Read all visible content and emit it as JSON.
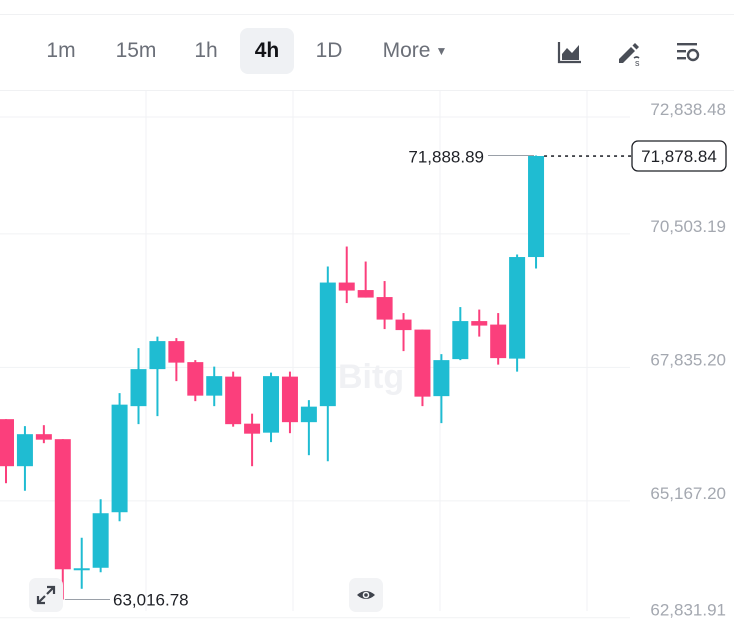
{
  "toolbar": {
    "timeframes": [
      {
        "label": "1m",
        "active": false
      },
      {
        "label": "15m",
        "active": false
      },
      {
        "label": "1h",
        "active": false
      },
      {
        "label": "4h",
        "active": true
      },
      {
        "label": "1D",
        "active": false
      }
    ],
    "more_label": "More",
    "tools": [
      "chart-type-icon",
      "drawing-tools-icon",
      "indicator-settings-icon"
    ]
  },
  "colors": {
    "up": "#1fbcd2",
    "down": "#fb3f7c",
    "grid": "#f1f2f4",
    "axis_text": "#a4a8b0"
  },
  "watermark": "Bitg",
  "chart_data": {
    "type": "candlestick",
    "y_ticks": [
      72838.48,
      70503.19,
      67835.2,
      65167.2,
      62831.91
    ],
    "y_tick_labels": [
      "72,838.48",
      "70,503.19",
      "67,835.20",
      "65,167.20",
      "62,831.91"
    ],
    "high_label": "71,888.89",
    "low_label": "63,016.78",
    "last_price_label": "71,878.84",
    "last_price": 71878.84,
    "candles": [
      {
        "o": 66620,
        "h": 66620,
        "l": 65340,
        "c": 65680
      },
      {
        "o": 65680,
        "h": 66480,
        "l": 65190,
        "c": 66320
      },
      {
        "o": 66320,
        "h": 66500,
        "l": 66140,
        "c": 66210
      },
      {
        "o": 66220,
        "h": 66220,
        "l": 63016.78,
        "c": 63620
      },
      {
        "o": 63620,
        "h": 64250,
        "l": 63230,
        "c": 63640
      },
      {
        "o": 63650,
        "h": 65020,
        "l": 63560,
        "c": 64740
      },
      {
        "o": 64760,
        "h": 67140,
        "l": 64580,
        "c": 66910
      },
      {
        "o": 66880,
        "h": 68040,
        "l": 66520,
        "c": 67620
      },
      {
        "o": 67620,
        "h": 68270,
        "l": 66680,
        "c": 68180
      },
      {
        "o": 68180,
        "h": 68240,
        "l": 67380,
        "c": 67750
      },
      {
        "o": 67760,
        "h": 67800,
        "l": 66980,
        "c": 67090
      },
      {
        "o": 67090,
        "h": 67670,
        "l": 66880,
        "c": 67480
      },
      {
        "o": 67470,
        "h": 67570,
        "l": 66470,
        "c": 66520
      },
      {
        "o": 66530,
        "h": 66730,
        "l": 65680,
        "c": 66330
      },
      {
        "o": 66350,
        "h": 67550,
        "l": 66160,
        "c": 67480
      },
      {
        "o": 67470,
        "h": 67570,
        "l": 66340,
        "c": 66560
      },
      {
        "o": 66560,
        "h": 67000,
        "l": 65900,
        "c": 66870
      },
      {
        "o": 66880,
        "h": 69670,
        "l": 65780,
        "c": 69350
      },
      {
        "o": 69350,
        "h": 70070,
        "l": 68940,
        "c": 69190
      },
      {
        "o": 69200,
        "h": 69770,
        "l": 69050,
        "c": 69050
      },
      {
        "o": 69060,
        "h": 69380,
        "l": 68420,
        "c": 68610
      },
      {
        "o": 68610,
        "h": 68740,
        "l": 67980,
        "c": 68400
      },
      {
        "o": 68410,
        "h": 68410,
        "l": 66880,
        "c": 67070
      },
      {
        "o": 67080,
        "h": 67920,
        "l": 66540,
        "c": 67800
      },
      {
        "o": 67820,
        "h": 68860,
        "l": 67800,
        "c": 68580
      },
      {
        "o": 68580,
        "h": 68810,
        "l": 68270,
        "c": 68490
      },
      {
        "o": 68510,
        "h": 68740,
        "l": 67710,
        "c": 67840
      },
      {
        "o": 67830,
        "h": 69910,
        "l": 67570,
        "c": 69860
      },
      {
        "o": 69860,
        "h": 71888.89,
        "l": 69630,
        "c": 71878.84
      }
    ]
  }
}
